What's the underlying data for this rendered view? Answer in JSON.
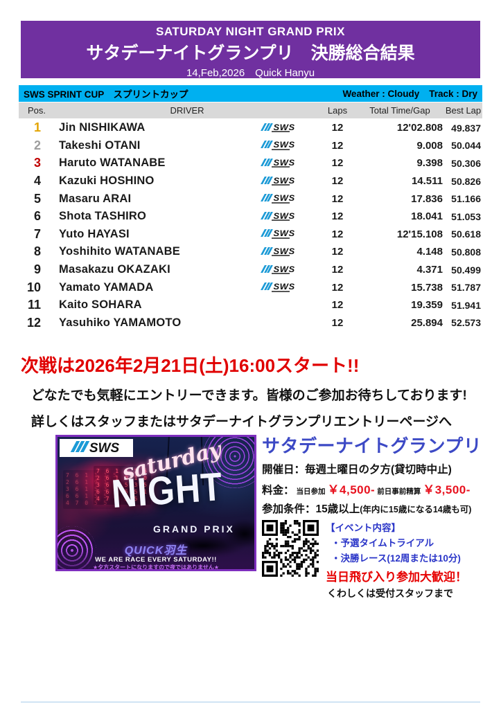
{
  "header": {
    "title_en": "SATURDAY NIGHT GRAND PRIX",
    "title_ja": "サタデーナイトグランプリ　決勝総合結果",
    "date_line": "14,Feb,2026　Quick Hanyu"
  },
  "event_bar": {
    "left": "SWS SPRINT CUP　スプリントカップ",
    "weather": "Weather : Cloudy",
    "track": "Track : Dry"
  },
  "colors": {
    "banner_purple": "#7030A0",
    "bar_blue": "#00B0F0",
    "head_gray": "#D9D9D9",
    "pos_gold": "#E3A400",
    "pos_silver": "#9D9D9D",
    "pos_bronze": "#C00000",
    "announce_red": "#E00000",
    "info_blue": "#3C49C5",
    "price_red": "#E8121F"
  },
  "results": {
    "columns": [
      "Pos.",
      "DRIVER",
      "Laps",
      "Total Time/Gap",
      "Best Lap"
    ],
    "logo_text": "SWS",
    "rows": [
      {
        "pos": "1",
        "driver": "Jin NISHIKAWA",
        "has_logo": true,
        "laps": "12",
        "total": "12'02.808",
        "best": "49.837",
        "pos_color": "#E3A400"
      },
      {
        "pos": "2",
        "driver": "Takeshi OTANI",
        "has_logo": true,
        "laps": "12",
        "total": "9.008",
        "best": "50.044",
        "pos_color": "#9D9D9D"
      },
      {
        "pos": "3",
        "driver": "Haruto WATANABE",
        "has_logo": true,
        "laps": "12",
        "total": "9.398",
        "best": "50.306",
        "pos_color": "#C00000"
      },
      {
        "pos": "4",
        "driver": "Kazuki HOSHINO",
        "has_logo": true,
        "laps": "12",
        "total": "14.511",
        "best": "50.826",
        "pos_color": "#1a1a1a"
      },
      {
        "pos": "5",
        "driver": "Masaru ARAI",
        "has_logo": true,
        "laps": "12",
        "total": "17.836",
        "best": "51.166",
        "pos_color": "#1a1a1a"
      },
      {
        "pos": "6",
        "driver": "Shota TASHIRO",
        "has_logo": true,
        "laps": "12",
        "total": "18.041",
        "best": "51.053",
        "pos_color": "#1a1a1a"
      },
      {
        "pos": "7",
        "driver": "Yuto HAYASI",
        "has_logo": true,
        "laps": "12",
        "total": "12'15.108",
        "best": "50.618",
        "pos_color": "#1a1a1a"
      },
      {
        "pos": "8",
        "driver": "Yoshihito WATANABE",
        "has_logo": true,
        "laps": "12",
        "total": "4.148",
        "best": "50.808",
        "pos_color": "#1a1a1a"
      },
      {
        "pos": "9",
        "driver": "Masakazu OKAZAKI",
        "has_logo": true,
        "laps": "12",
        "total": "4.371",
        "best": "50.499",
        "pos_color": "#1a1a1a"
      },
      {
        "pos": "10",
        "driver": "Yamato YAMADA",
        "has_logo": true,
        "laps": "12",
        "total": "15.738",
        "best": "51.787",
        "pos_color": "#1a1a1a"
      },
      {
        "pos": "11",
        "driver": "Kaito SOHARA",
        "has_logo": false,
        "laps": "12",
        "total": "19.359",
        "best": "51.941",
        "pos_color": "#1a1a1a"
      },
      {
        "pos": "12",
        "driver": "Yasuhiko YAMAMOTO",
        "has_logo": false,
        "laps": "12",
        "total": "25.894",
        "best": "52.573",
        "pos_color": "#1a1a1a"
      }
    ]
  },
  "announcement": {
    "line1": "次戦は2026年2月21日(土)16:00スタート!!",
    "line2": "どなたでも気軽にエントリーできます。皆様のご参加お待ちしております!",
    "line3": "詳しくはスタッフまたはサタデーナイトグランプリエントリーページへ"
  },
  "promo": {
    "logo_text": "SWS",
    "script_word": "saturday",
    "night_word": "NIGHT",
    "grand_prix": "GRAND PRIX",
    "quick": "QUICK羽生",
    "tagline": "WE ARE RACE EVERY SATURDAY!!",
    "note": "★夕方スタートになりますので夜ではありません★",
    "scoreboard_lines": [
      "761115",
      "261910",
      "361535",
      "661551",
      "47055"
    ]
  },
  "info": {
    "title": "サタデーナイトグランプリ",
    "schedule": "開催日：毎週土曜日の夕方(貸切時中止)",
    "fee_label": "料金：",
    "fee_day_label": "当日参加",
    "fee_day_price": "￥4,500-",
    "fee_pre_label": "前日事前精算",
    "fee_pre_price": "￥3,500-",
    "condition_main": "参加条件：15歳以上",
    "condition_note": "(年内に15歳になる14歳も可)",
    "event_header": "【イベント内容】",
    "event_item1": "・予選タイムトライアル",
    "event_item2": "・決勝レース(12周または10分)",
    "highlight": "当日飛び入り参加大歓迎！",
    "footer": "くわしくは受付スタッフまで"
  }
}
